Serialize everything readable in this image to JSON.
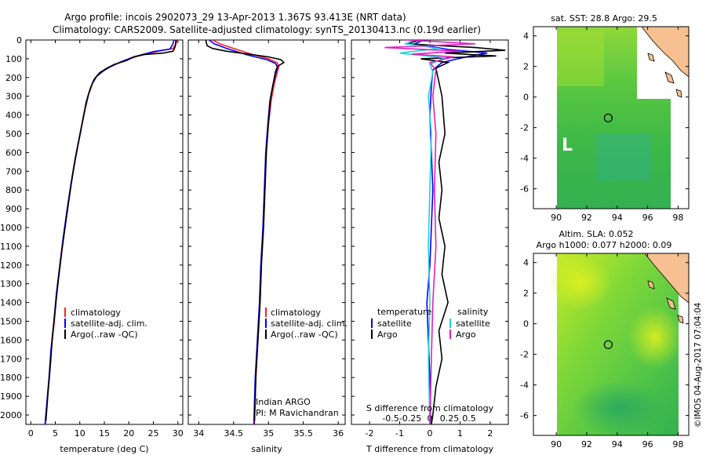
{
  "title_line1": "Argo profile: incois 2902073_29 13-Apr-2013 1.367S 93.413E (NRT data)",
  "title_line2": "Climatology: CARS2009. Satellite-adjusted climatology: synTS_20130413.nc (0.19d earlier)",
  "chart_data": [
    {
      "type": "line",
      "name": "temperature",
      "xlabel": "temperature (deg C)",
      "ylabel": "",
      "xlim": [
        -1,
        31
      ],
      "ylim": [
        0,
        2050
      ],
      "xticks": [
        0,
        5,
        10,
        15,
        20,
        25,
        30
      ],
      "yticks": [
        0,
        100,
        200,
        300,
        400,
        500,
        600,
        700,
        800,
        900,
        1000,
        1100,
        1200,
        1300,
        1400,
        1500,
        1600,
        1700,
        1800,
        1900,
        2000
      ],
      "legend": [
        "climatology",
        "satellite-adj. clim.",
        "Argo(..raw -QC)"
      ],
      "series": [
        {
          "name": "climatology",
          "color": "#ff2020",
          "points": [
            [
              29.8,
              0
            ],
            [
              29.6,
              20
            ],
            [
              29.0,
              45
            ],
            [
              26,
              60
            ],
            [
              22,
              85
            ],
            [
              19,
              110
            ],
            [
              16.5,
              140
            ],
            [
              15,
              160
            ],
            [
              13.5,
              190
            ],
            [
              12.6,
              230
            ],
            [
              11.8,
              290
            ],
            [
              11.0,
              380
            ],
            [
              10.1,
              500
            ],
            [
              9.2,
              620
            ],
            [
              8.3,
              760
            ],
            [
              7.5,
              900
            ],
            [
              6.7,
              1050
            ],
            [
              6.0,
              1200
            ],
            [
              5.3,
              1350
            ],
            [
              4.8,
              1500
            ],
            [
              4.2,
              1650
            ],
            [
              3.8,
              1800
            ],
            [
              3.3,
              1950
            ],
            [
              3.0,
              2050
            ]
          ]
        },
        {
          "name": "satellite-adj. clim.",
          "color": "#0000ff",
          "points": [
            [
              29.2,
              0
            ],
            [
              29.0,
              20
            ],
            [
              28.4,
              48
            ],
            [
              25,
              62
            ],
            [
              21,
              90
            ],
            [
              18.5,
              115
            ],
            [
              16.2,
              142
            ],
            [
              14.8,
              165
            ],
            [
              13.4,
              195
            ],
            [
              12.5,
              235
            ],
            [
              11.7,
              295
            ],
            [
              10.9,
              385
            ],
            [
              10.0,
              505
            ],
            [
              9.1,
              625
            ],
            [
              8.2,
              765
            ],
            [
              7.4,
              905
            ],
            [
              6.6,
              1055
            ],
            [
              5.9,
              1205
            ],
            [
              5.2,
              1355
            ],
            [
              4.7,
              1505
            ],
            [
              4.1,
              1655
            ],
            [
              3.7,
              1805
            ],
            [
              3.2,
              1955
            ],
            [
              2.9,
              2050
            ]
          ]
        },
        {
          "name": "Argo(..raw -QC)",
          "color": "#000000",
          "points": [
            [
              29.6,
              0
            ],
            [
              29.5,
              30
            ],
            [
              29.3,
              45
            ],
            [
              29.0,
              60
            ],
            [
              27,
              70
            ],
            [
              23,
              78
            ],
            [
              21,
              90
            ],
            [
              19.5,
              110
            ],
            [
              17,
              130
            ],
            [
              15.5,
              150
            ],
            [
              14,
              175
            ],
            [
              12.9,
              210
            ],
            [
              12.1,
              260
            ],
            [
              11.3,
              330
            ],
            [
              10.5,
              440
            ],
            [
              9.6,
              560
            ],
            [
              8.7,
              690
            ],
            [
              7.9,
              830
            ],
            [
              7.1,
              980
            ],
            [
              6.3,
              1130
            ],
            [
              5.6,
              1280
            ],
            [
              5.0,
              1430
            ],
            [
              4.4,
              1580
            ],
            [
              4.0,
              1730
            ],
            [
              3.5,
              1880
            ],
            [
              3.1,
              2030
            ]
          ]
        }
      ]
    },
    {
      "type": "line",
      "name": "salinity",
      "xlabel": "salinity",
      "xlim": [
        33.85,
        36.1
      ],
      "ylim": [
        0,
        2050
      ],
      "xticks": [
        34,
        34.5,
        35,
        35.5,
        36
      ],
      "legend": [
        "climatology",
        "satellite-adj. clim.",
        "Argo(..raw -QC)"
      ],
      "annotation_line1": "Indian ARGO",
      "annotation_line2": "PI: M Ravichandran",
      "series": [
        {
          "name": "climatology",
          "color": "#ff2020",
          "points": [
            [
              34.2,
              0
            ],
            [
              34.3,
              20
            ],
            [
              34.5,
              45
            ],
            [
              34.75,
              75
            ],
            [
              35.0,
              100
            ],
            [
              35.12,
              120
            ],
            [
              35.15,
              140
            ],
            [
              35.12,
              180
            ],
            [
              35.08,
              240
            ],
            [
              35.04,
              320
            ],
            [
              35.0,
              450
            ],
            [
              34.97,
              600
            ],
            [
              34.95,
              800
            ],
            [
              34.93,
              1000
            ],
            [
              34.9,
              1200
            ],
            [
              34.88,
              1400
            ],
            [
              34.85,
              1600
            ],
            [
              34.82,
              1800
            ],
            [
              34.8,
              2050
            ]
          ]
        },
        {
          "name": "satellite-adj. clim.",
          "color": "#0000ff",
          "points": [
            [
              34.15,
              0
            ],
            [
              34.22,
              20
            ],
            [
              34.4,
              45
            ],
            [
              34.7,
              80
            ],
            [
              34.98,
              105
            ],
            [
              35.1,
              125
            ],
            [
              35.13,
              145
            ],
            [
              35.1,
              185
            ],
            [
              35.06,
              245
            ],
            [
              35.02,
              325
            ],
            [
              34.99,
              455
            ],
            [
              34.96,
              605
            ],
            [
              34.94,
              805
            ],
            [
              34.92,
              1005
            ],
            [
              34.89,
              1205
            ],
            [
              34.87,
              1405
            ],
            [
              34.84,
              1605
            ],
            [
              34.81,
              1805
            ],
            [
              34.79,
              2050
            ]
          ]
        },
        {
          "name": "Argo(..raw -QC)",
          "color": "#000000",
          "points": [
            [
              34.1,
              0
            ],
            [
              34.12,
              30
            ],
            [
              34.2,
              45
            ],
            [
              34.4,
              60
            ],
            [
              34.6,
              70
            ],
            [
              34.8,
              80
            ],
            [
              35.0,
              90
            ],
            [
              35.18,
              105
            ],
            [
              35.22,
              120
            ],
            [
              35.13,
              140
            ],
            [
              35.1,
              170
            ],
            [
              35.07,
              230
            ],
            [
              35.03,
              310
            ],
            [
              35.0,
              440
            ],
            [
              34.97,
              590
            ],
            [
              34.95,
              790
            ],
            [
              34.93,
              990
            ],
            [
              34.9,
              1190
            ],
            [
              34.88,
              1390
            ],
            [
              34.85,
              1590
            ],
            [
              34.82,
              1790
            ],
            [
              34.8,
              2030
            ]
          ]
        }
      ]
    },
    {
      "type": "line",
      "name": "difference",
      "xlabel": "T difference from climatology",
      "xlabel_top": "S difference from climatology",
      "xlim": [
        -2.6,
        2.6
      ],
      "ylim": [
        0,
        2050
      ],
      "xticks_bottom": [
        -2,
        -1,
        0,
        1,
        2
      ],
      "xticks_top_labels": [
        "-0.5",
        "-0.25",
        "0",
        "0.25",
        "0.5"
      ],
      "legend_temperature_title": "temperature",
      "legend_salinity_title": "salinity",
      "legend_temperature_items": [
        "satellite",
        "Argo"
      ],
      "legend_salinity_items": [
        "satellite",
        "Argo"
      ],
      "series": [
        {
          "name": "temperature satellite",
          "color": "#0000ff",
          "points": [
            [
              -0.2,
              0
            ],
            [
              -0.5,
              20
            ],
            [
              0.6,
              50
            ],
            [
              1.9,
              70
            ],
            [
              1.2,
              90
            ],
            [
              0.4,
              120
            ],
            [
              0.1,
              160
            ],
            [
              0.05,
              250
            ],
            [
              0.0,
              400
            ],
            [
              0.05,
              600
            ],
            [
              0.1,
              800
            ],
            [
              0.05,
              1000
            ],
            [
              0.0,
              1200
            ],
            [
              -0.1,
              1400
            ],
            [
              -0.05,
              1600
            ],
            [
              0.0,
              1800
            ],
            [
              0.02,
              2050
            ]
          ]
        },
        {
          "name": "temperature Argo",
          "color": "#000000",
          "points": [
            [
              -0.3,
              0
            ],
            [
              -0.8,
              20
            ],
            [
              1.5,
              40
            ],
            [
              2.5,
              55
            ],
            [
              0.5,
              70
            ],
            [
              2.2,
              85
            ],
            [
              -0.3,
              100
            ],
            [
              0.6,
              120
            ],
            [
              0.2,
              150
            ],
            [
              0.4,
              300
            ],
            [
              0.5,
              500
            ],
            [
              0.3,
              650
            ],
            [
              0.4,
              800
            ],
            [
              0.3,
              950
            ],
            [
              0.5,
              1100
            ],
            [
              0.4,
              1250
            ],
            [
              0.6,
              1400
            ],
            [
              0.3,
              1550
            ],
            [
              0.4,
              1700
            ],
            [
              0.2,
              1850
            ],
            [
              0.1,
              2000
            ],
            [
              0.05,
              2050
            ]
          ]
        },
        {
          "name": "salinity satellite",
          "color": "#20d0e0",
          "points": [
            [
              -0.5,
              0
            ],
            [
              -0.8,
              20
            ],
            [
              0.3,
              45
            ],
            [
              -1.0,
              70
            ],
            [
              0.5,
              95
            ],
            [
              0.0,
              130
            ],
            [
              0.1,
              170
            ],
            [
              -0.05,
              300
            ],
            [
              0.05,
              500
            ],
            [
              0.0,
              800
            ],
            [
              -0.05,
              1100
            ],
            [
              0.0,
              1400
            ],
            [
              -0.05,
              1700
            ],
            [
              0.0,
              2050
            ]
          ]
        },
        {
          "name": "salinity Argo",
          "color": "#e020c0",
          "points": [
            [
              -0.8,
              0
            ],
            [
              1.5,
              20
            ],
            [
              -1.5,
              40
            ],
            [
              1.0,
              60
            ],
            [
              -0.6,
              75
            ],
            [
              0.8,
              90
            ],
            [
              0.0,
              120
            ],
            [
              0.2,
              160
            ],
            [
              0.1,
              300
            ],
            [
              0.2,
              500
            ],
            [
              0.15,
              800
            ],
            [
              0.2,
              1100
            ],
            [
              0.1,
              1400
            ],
            [
              0.05,
              1700
            ],
            [
              0.0,
              2050
            ]
          ]
        }
      ]
    }
  ],
  "maps": [
    {
      "name": "sst-map",
      "title_line1": "sat. SST: 28.8  Argo: 29.5",
      "title_line2": "",
      "xlim": [
        88.5,
        98.7
      ],
      "ylim": [
        -7.3,
        4.6
      ],
      "xticks": [
        90,
        92,
        94,
        96,
        98
      ],
      "yticks": [
        4,
        2,
        0,
        -2,
        -4,
        -6
      ],
      "marker": [
        93.413,
        -1.367
      ],
      "annotation": "L"
    },
    {
      "name": "sla-map",
      "title_line1": "Altim. SLA: 0.052",
      "title_line2": "Argo h1000: 0.077  h2000: 0.09",
      "xlim": [
        88.5,
        98.7
      ],
      "ylim": [
        -7.3,
        4.6
      ],
      "xticks": [
        90,
        92,
        94,
        96,
        98
      ],
      "yticks": [
        4,
        2,
        0,
        -2,
        -4,
        -6
      ],
      "marker": [
        93.413,
        -1.367
      ]
    }
  ],
  "credit": "©IMOS 04-Aug-2017 07:04:04"
}
